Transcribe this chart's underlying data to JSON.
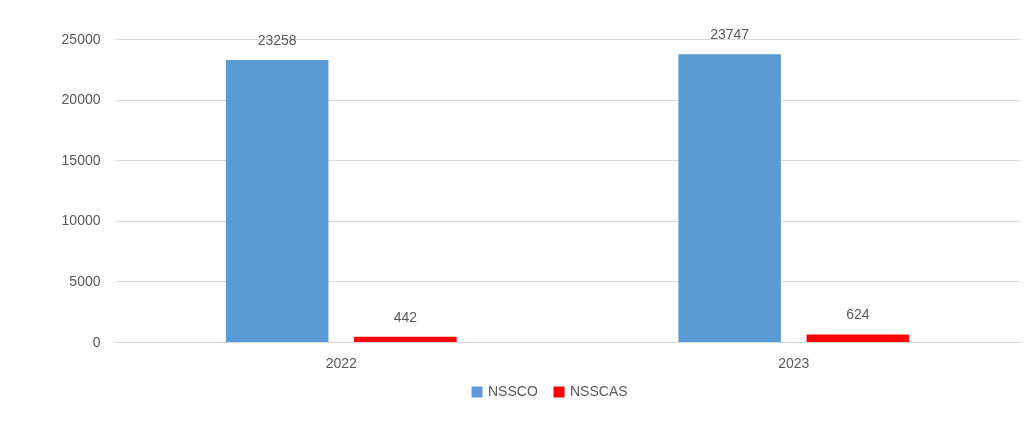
{
  "chart_data": {
    "type": "bar",
    "categories": [
      "2022",
      "2023"
    ],
    "series": [
      {
        "name": "NSSCO",
        "color": "#5b9bd5",
        "values": [
          23258,
          23747
        ]
      },
      {
        "name": "NSSCAS",
        "color": "#ff0000",
        "values": [
          442,
          624
        ]
      }
    ],
    "ylim": [
      0,
      25000
    ],
    "yticks": [
      0,
      5000,
      10000,
      15000,
      20000,
      25000
    ],
    "grid": "y",
    "legend": "bottom",
    "data_labels": true
  }
}
